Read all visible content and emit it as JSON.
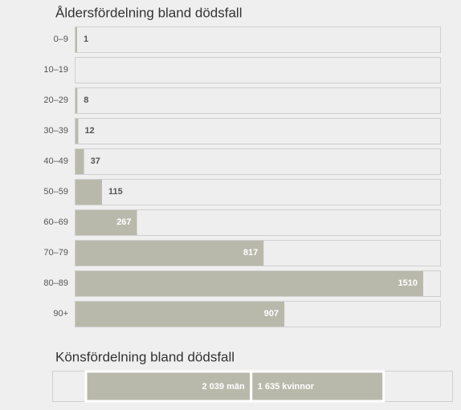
{
  "chart_data": [
    {
      "type": "hbar",
      "title": "Åldersfördelning bland dödsfall",
      "categories": [
        "0–9",
        "10–19",
        "20–29",
        "30–39",
        "40–49",
        "50–59",
        "60–69",
        "70–79",
        "80–89",
        "90+"
      ],
      "values": [
        1,
        null,
        8,
        12,
        37,
        115,
        267,
        817,
        1510,
        907
      ],
      "color": "#b9b9ab",
      "xlim": [
        0,
        1587
      ]
    },
    {
      "type": "split",
      "title": "Könsfördelning bland dödsfall",
      "values": [
        2039,
        1635
      ],
      "value_labels": [
        "2 039 män",
        "1 635 kvinnor"
      ],
      "color": "#b9b9ab",
      "xlim": [
        0,
        4530
      ]
    }
  ]
}
